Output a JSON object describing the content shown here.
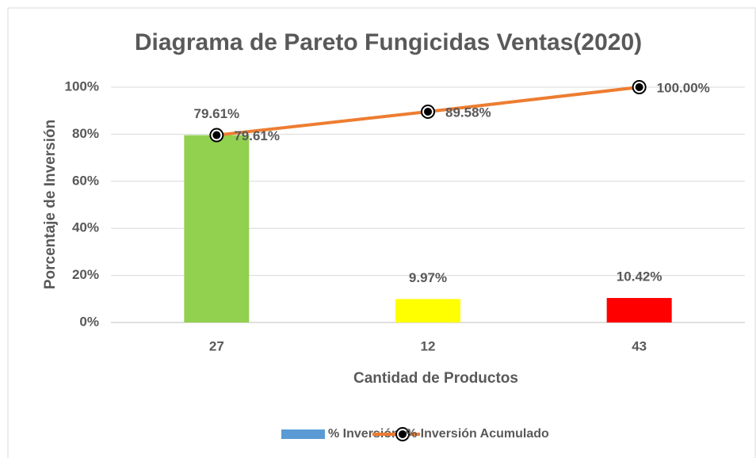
{
  "chart_data": {
    "type": "pareto",
    "title": "Diagrama de Pareto Fungicidas Ventas(2020)",
    "x_label": "Cantidad de Productos",
    "y_label": "Porcentaje de Inversión",
    "categories": [
      "27",
      "12",
      "43"
    ],
    "series": [
      {
        "name": "% Inversión",
        "type": "bar",
        "color": "#5b9bd5",
        "colors": [
          "#92d050",
          "#ffff00",
          "#ff0000"
        ],
        "values": [
          79.61,
          9.97,
          10.42
        ],
        "value_labels": [
          "79.61%",
          "9.97%",
          "10.42%"
        ]
      },
      {
        "name": "% Inversión Acumulado",
        "type": "line",
        "color": "#ed7d31",
        "values": [
          79.61,
          89.58,
          100
        ],
        "value_labels": [
          "79.61%",
          "89.58%",
          "100.00%"
        ]
      }
    ],
    "ylim": [
      0,
      100
    ],
    "yticks": [
      {
        "value": 0,
        "label": "0%"
      },
      {
        "value": 20,
        "label": "20%"
      },
      {
        "value": 40,
        "label": "40%"
      },
      {
        "value": 60,
        "label": "60%"
      },
      {
        "value": 80,
        "label": "80%"
      },
      {
        "value": 100,
        "label": "100%"
      }
    ],
    "grid": true,
    "legend": "bottom"
  }
}
